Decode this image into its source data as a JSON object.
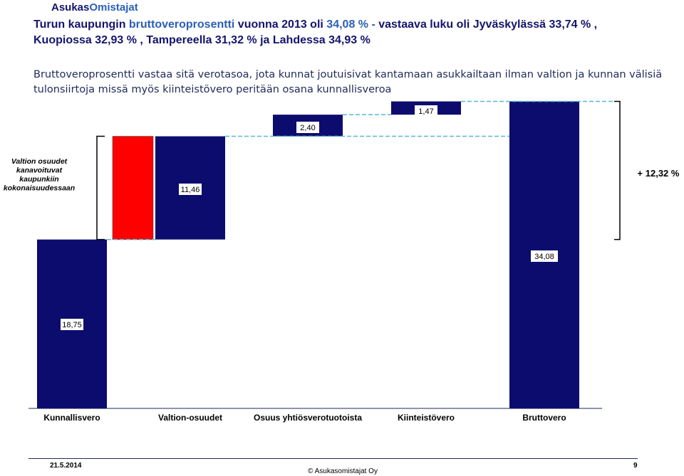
{
  "header": {
    "logo_part1": "Asukas",
    "logo_part2": "Omistajat",
    "headline_1a": "Turun kaupungin ",
    "headline_1b": "bruttoveroprosentti",
    "headline_1c": "  vuonna 2013 oli ",
    "headline_1d": "34,08 % - ",
    "headline_1e": "vastaava luku oli Jyväskylässä 33,74 % ,",
    "headline_2": "Kuopiossa 32,93 % , Tampereella 31,32 % ja Lahdessa 34,93 %",
    "description_1": "Bruttoveroprosentti vastaa sitä verotasoa, jota kunnat joutuisivat kantamaan asukkailtaan ilman valtion ja kunnan välisiä",
    "description_2": "tulonsiirtoja missä myös kiinteistövero peritään osana kunnallisveroa"
  },
  "chart_data": {
    "type": "waterfall",
    "categories": [
      "Kunnallisvero",
      "Valtion-osuudet",
      "Osuus yhtiösverotuotoista",
      "Kiinteistövero",
      "Bruttovero"
    ],
    "values": [
      18.75,
      11.46,
      2.4,
      1.47,
      34.08
    ],
    "value_labels": [
      "18,75",
      "11,46",
      "2,40",
      "1,47",
      "34,08"
    ],
    "total_index": 4,
    "red_segment_label": "Valtion osuudet kanavoituvat kaupunkiin kokonaisuudessaan",
    "red_segment_lines": [
      "Valtion osuudet",
      "kanavoituvat",
      "kaupunkiin",
      "kokonaisuudessaan"
    ],
    "bracket_label": "+ 12,32 %",
    "colors": {
      "bar": "#0c0c6e",
      "red": "#ff0000",
      "dashed": "#5bb6d6"
    }
  },
  "footer": {
    "date": "21.5.2014",
    "copyright": "© Asukasomistajat Oy",
    "page": "9"
  }
}
